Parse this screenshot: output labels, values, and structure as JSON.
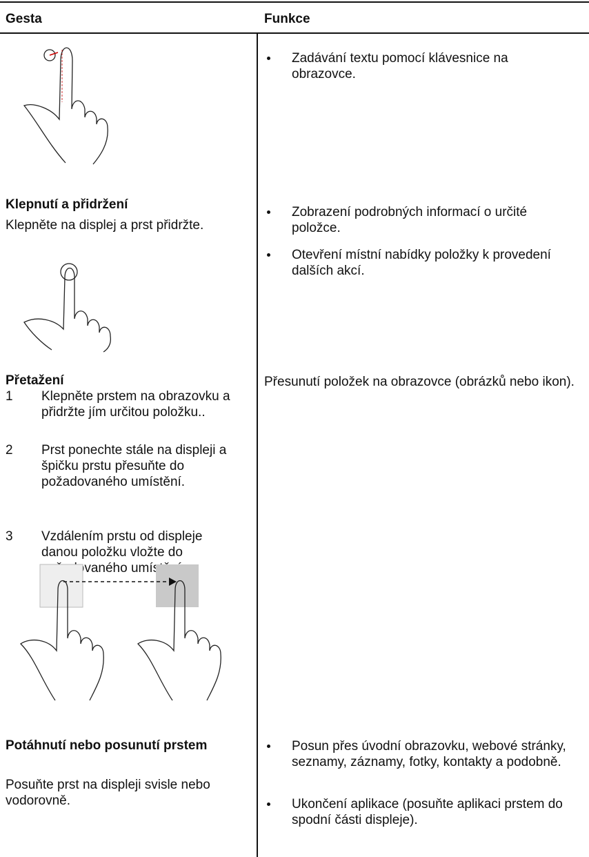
{
  "header": {
    "gesture": "Gesta",
    "function": "Funkce"
  },
  "rows": [
    {
      "functions": [
        "Zadávání textu pomocí klávesnice na obrazovce."
      ]
    },
    {
      "title": "Klepnutí a přidržení",
      "description": "Klepněte na displej a prst přidržte.",
      "functions": [
        "Zobrazení podrobných informací o určité položce.",
        "Otevření místní nabídky položky k provedení dalších akcí."
      ]
    },
    {
      "title": "Přetažení",
      "steps": [
        {
          "number": "1",
          "text": "Klepněte prstem na obrazovku a přidržte jím určitou položku.."
        },
        {
          "number": "2",
          "text": "Prst ponechte stále na displeji a špičku prstu přesuňte do požadovaného umístění."
        },
        {
          "number": "3",
          "text": "Vzdálením prstu od displeje danou položku vložte do požadovaného umístění."
        }
      ],
      "function_text": "Přesunutí položek na obrazovce (obrázků nebo ikon)."
    },
    {
      "title": "Potáhnutí nebo posunutí prstem",
      "description": "Posuňte prst na displeji svisle nebo vodorovně.",
      "functions": [
        "Posun přes úvodní obrazovku, webové stránky, seznamy, záznamy, fotky, kontakty a podobně.",
        "Ukončení aplikace (posuňte aplikaci prstem do spodní části displeje)."
      ]
    }
  ]
}
